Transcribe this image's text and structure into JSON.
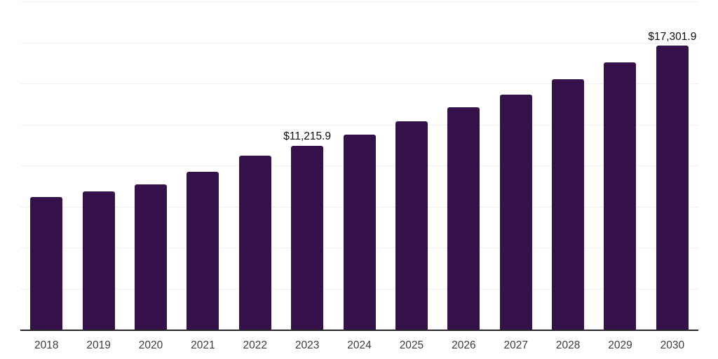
{
  "chart_data": {
    "type": "bar",
    "title": "",
    "xlabel": "",
    "ylabel": "",
    "categories": [
      "2018",
      "2019",
      "2020",
      "2021",
      "2022",
      "2023",
      "2024",
      "2025",
      "2026",
      "2027",
      "2028",
      "2029",
      "2030"
    ],
    "values": [
      8090,
      8430,
      8830,
      9630,
      10600,
      11215.9,
      11880,
      12700,
      13530,
      14330,
      15270,
      16270,
      17301.9
    ],
    "data_labels": [
      "",
      "",
      "",
      "",
      "",
      "$11,215.9",
      "",
      "",
      "",
      "",
      "",
      "",
      "$17,301.9"
    ],
    "ylim": [
      0,
      20000
    ],
    "gridline_step": 2500,
    "grid": true,
    "legend": false,
    "y_axis_labels_visible": false,
    "bar_color": "#35114A",
    "axis_line_color": "#262626",
    "gridline_color": "#f1f1f1",
    "tick_label_color": "#3c3c3c",
    "data_label_color": "#0d0d0d",
    "background_color": "#ffffff"
  }
}
